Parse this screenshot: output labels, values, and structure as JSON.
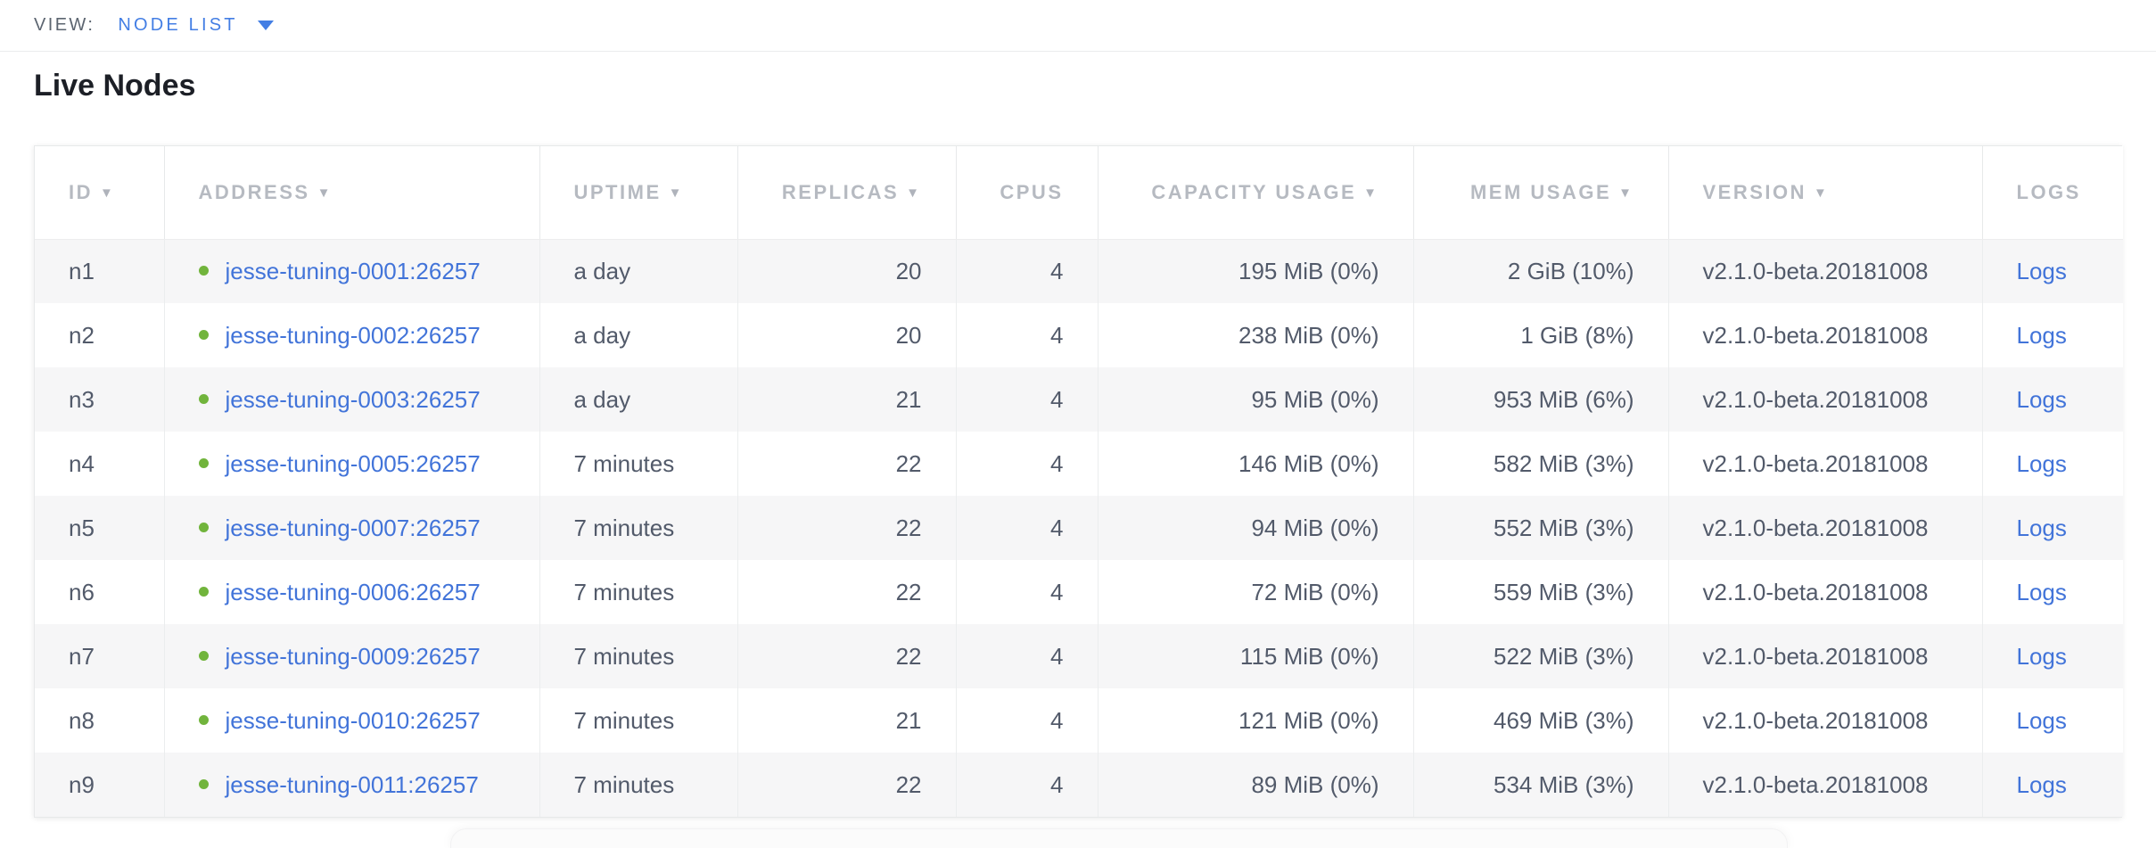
{
  "view_bar": {
    "label": "VIEW:",
    "selected": "NODE LIST"
  },
  "page": {
    "title": "Live Nodes"
  },
  "icons": {
    "sort_desc": "▼",
    "dropdown_caret": "▼",
    "node_status_dot": "●"
  },
  "colors": {
    "link_blue": "#4274d9",
    "view_link_blue": "#437ee4",
    "status_green": "#71b43c",
    "header_text": "#b6bac1",
    "body_text": "#525a6a",
    "row_alt_bg": "#f6f6f7"
  },
  "table": {
    "columns": [
      {
        "key": "id",
        "label": "ID",
        "sorted": true,
        "align": "left"
      },
      {
        "key": "address",
        "label": "ADDRESS",
        "sorted": true,
        "align": "left",
        "type": "link-with-dot"
      },
      {
        "key": "uptime",
        "label": "UPTIME",
        "sorted": true,
        "align": "left"
      },
      {
        "key": "replicas",
        "label": "REPLICAS",
        "sorted": true,
        "align": "right"
      },
      {
        "key": "cpus",
        "label": "CPUS",
        "sorted": false,
        "align": "right"
      },
      {
        "key": "capacity_usage",
        "label": "CAPACITY USAGE",
        "sorted": true,
        "align": "right"
      },
      {
        "key": "mem_usage",
        "label": "MEM USAGE",
        "sorted": true,
        "align": "right"
      },
      {
        "key": "version",
        "label": "VERSION",
        "sorted": true,
        "align": "left"
      },
      {
        "key": "logs",
        "label": "LOGS",
        "sorted": false,
        "align": "left",
        "type": "link"
      }
    ],
    "rows": [
      {
        "id": "n1",
        "address": "jesse-tuning-0001:26257",
        "uptime": "a day",
        "replicas": "20",
        "cpus": "4",
        "capacity_usage": "195 MiB (0%)",
        "mem_usage": "2 GiB (10%)",
        "version": "v2.1.0-beta.20181008",
        "logs": "Logs"
      },
      {
        "id": "n2",
        "address": "jesse-tuning-0002:26257",
        "uptime": "a day",
        "replicas": "20",
        "cpus": "4",
        "capacity_usage": "238 MiB (0%)",
        "mem_usage": "1 GiB (8%)",
        "version": "v2.1.0-beta.20181008",
        "logs": "Logs"
      },
      {
        "id": "n3",
        "address": "jesse-tuning-0003:26257",
        "uptime": "a day",
        "replicas": "21",
        "cpus": "4",
        "capacity_usage": "95 MiB (0%)",
        "mem_usage": "953 MiB (6%)",
        "version": "v2.1.0-beta.20181008",
        "logs": "Logs"
      },
      {
        "id": "n4",
        "address": "jesse-tuning-0005:26257",
        "uptime": "7 minutes",
        "replicas": "22",
        "cpus": "4",
        "capacity_usage": "146 MiB (0%)",
        "mem_usage": "582 MiB (3%)",
        "version": "v2.1.0-beta.20181008",
        "logs": "Logs"
      },
      {
        "id": "n5",
        "address": "jesse-tuning-0007:26257",
        "uptime": "7 minutes",
        "replicas": "22",
        "cpus": "4",
        "capacity_usage": "94 MiB (0%)",
        "mem_usage": "552 MiB (3%)",
        "version": "v2.1.0-beta.20181008",
        "logs": "Logs"
      },
      {
        "id": "n6",
        "address": "jesse-tuning-0006:26257",
        "uptime": "7 minutes",
        "replicas": "22",
        "cpus": "4",
        "capacity_usage": "72 MiB (0%)",
        "mem_usage": "559 MiB (3%)",
        "version": "v2.1.0-beta.20181008",
        "logs": "Logs"
      },
      {
        "id": "n7",
        "address": "jesse-tuning-0009:26257",
        "uptime": "7 minutes",
        "replicas": "22",
        "cpus": "4",
        "capacity_usage": "115 MiB (0%)",
        "mem_usage": "522 MiB (3%)",
        "version": "v2.1.0-beta.20181008",
        "logs": "Logs"
      },
      {
        "id": "n8",
        "address": "jesse-tuning-0010:26257",
        "uptime": "7 minutes",
        "replicas": "21",
        "cpus": "4",
        "capacity_usage": "121 MiB (0%)",
        "mem_usage": "469 MiB (3%)",
        "version": "v2.1.0-beta.20181008",
        "logs": "Logs"
      },
      {
        "id": "n9",
        "address": "jesse-tuning-0011:26257",
        "uptime": "7 minutes",
        "replicas": "22",
        "cpus": "4",
        "capacity_usage": "89 MiB (0%)",
        "mem_usage": "534 MiB (3%)",
        "version": "v2.1.0-beta.20181008",
        "logs": "Logs"
      }
    ]
  }
}
